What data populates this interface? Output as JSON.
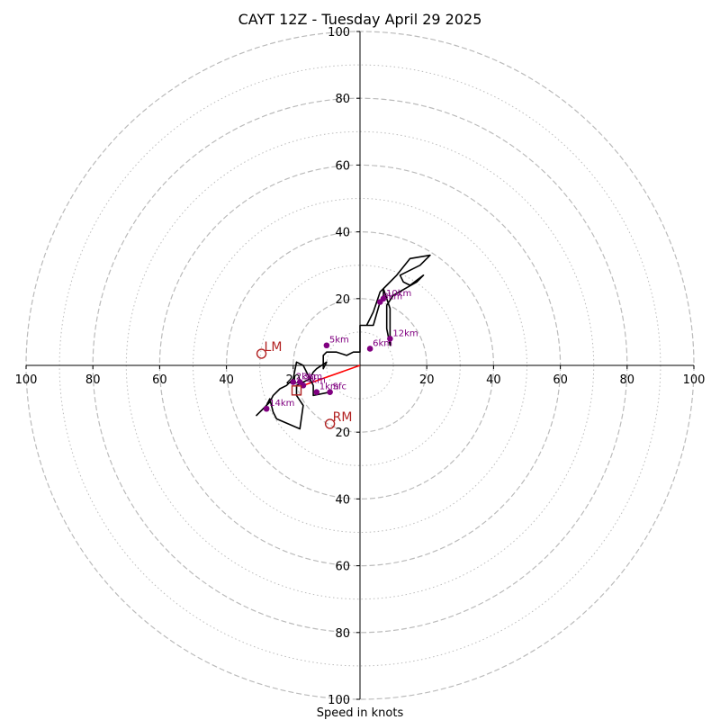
{
  "chart_data": {
    "type": "hodograph",
    "title": "CAYT 12Z - Tuesday April 29 2025",
    "xlabel": "Speed in knots",
    "ylabel": "",
    "xlim": [
      -100,
      100
    ],
    "ylim": [
      -100,
      100
    ],
    "rings_dashed": [
      20,
      40,
      60,
      80,
      100
    ],
    "rings_dotted": [
      10,
      30,
      50,
      70,
      90
    ],
    "x_tick_labels": [
      "100",
      "80",
      "60",
      "40",
      "20",
      "20",
      "40",
      "60",
      "80",
      "100"
    ],
    "y_tick_labels": [
      "100",
      "80",
      "60",
      "40",
      "20",
      "20",
      "40",
      "60",
      "80",
      "100"
    ],
    "x_tick_values": [
      -100,
      -80,
      -60,
      -40,
      -20,
      20,
      40,
      60,
      80,
      100
    ],
    "y_tick_values": [
      100,
      80,
      60,
      40,
      20,
      -20,
      -40,
      -60,
      -80,
      -100
    ],
    "wind_profile": {
      "color": "#000000",
      "u": [
        -9,
        -14,
        -14,
        -15,
        -16,
        -17,
        -19,
        -20,
        -21,
        -22,
        -24,
        -26,
        -27,
        -31,
        -28,
        -27,
        -26,
        -25,
        -18,
        -17,
        -19,
        -19,
        -15,
        -14,
        -13,
        -10,
        -11,
        -11,
        -10,
        -7,
        -4,
        -2,
        0,
        0,
        4,
        4,
        6,
        7,
        7,
        9,
        9,
        8,
        8,
        10,
        17,
        19,
        15,
        13,
        12,
        18,
        21,
        15,
        11,
        8,
        6,
        5,
        4,
        2
      ],
      "v": [
        -8,
        -9,
        -6,
        -4,
        -2,
        0,
        1,
        -4,
        -5,
        -6,
        -7,
        -9,
        -11,
        -15,
        -12,
        -10,
        -14,
        -16,
        -19,
        -12,
        -9,
        -6,
        -4,
        -2,
        -1,
        1,
        -1,
        3,
        4,
        4,
        3,
        4,
        4,
        12,
        12,
        12,
        19,
        21,
        23,
        17,
        6,
        11,
        18,
        21,
        25,
        27,
        24,
        25,
        27,
        30,
        33,
        32,
        27,
        24,
        22,
        19,
        16,
        12
      ]
    },
    "height_markers": [
      {
        "label": "Sfc",
        "u": -9,
        "v": -8
      },
      {
        "label": "1km",
        "u": -13,
        "v": -8
      },
      {
        "label": "2km",
        "u": -20,
        "v": -5
      },
      {
        "label": "3km",
        "u": -18,
        "v": -5
      },
      {
        "label": "4km",
        "u": -17,
        "v": -6
      },
      {
        "label": "5km",
        "u": -10,
        "v": 6
      },
      {
        "label": "6km",
        "u": 3,
        "v": 5
      },
      {
        "label": "8km",
        "u": 6,
        "v": 19
      },
      {
        "label": "10km",
        "u": 7,
        "v": 20
      },
      {
        "label": "12km",
        "u": 9,
        "v": 8
      },
      {
        "label": "14km",
        "u": -28,
        "v": -13
      }
    ],
    "storm_motions": [
      {
        "label": "LM",
        "u": -29.5,
        "v": 3.5
      },
      {
        "label": "RM",
        "u": -9,
        "v": -17.5
      }
    ],
    "mean_wind": {
      "label": "",
      "u": -19,
      "v": -7.5
    },
    "shear_vector": {
      "color": "#ff0000",
      "from_u": 0,
      "from_v": 0,
      "to_u": -17,
      "to_v": -6
    },
    "colors": {
      "rings": "#bbbbbb",
      "axes": "#000000",
      "markers": "#800080",
      "storm_motion": "#b22222",
      "shear": "#ff0000"
    },
    "grid": true
  }
}
